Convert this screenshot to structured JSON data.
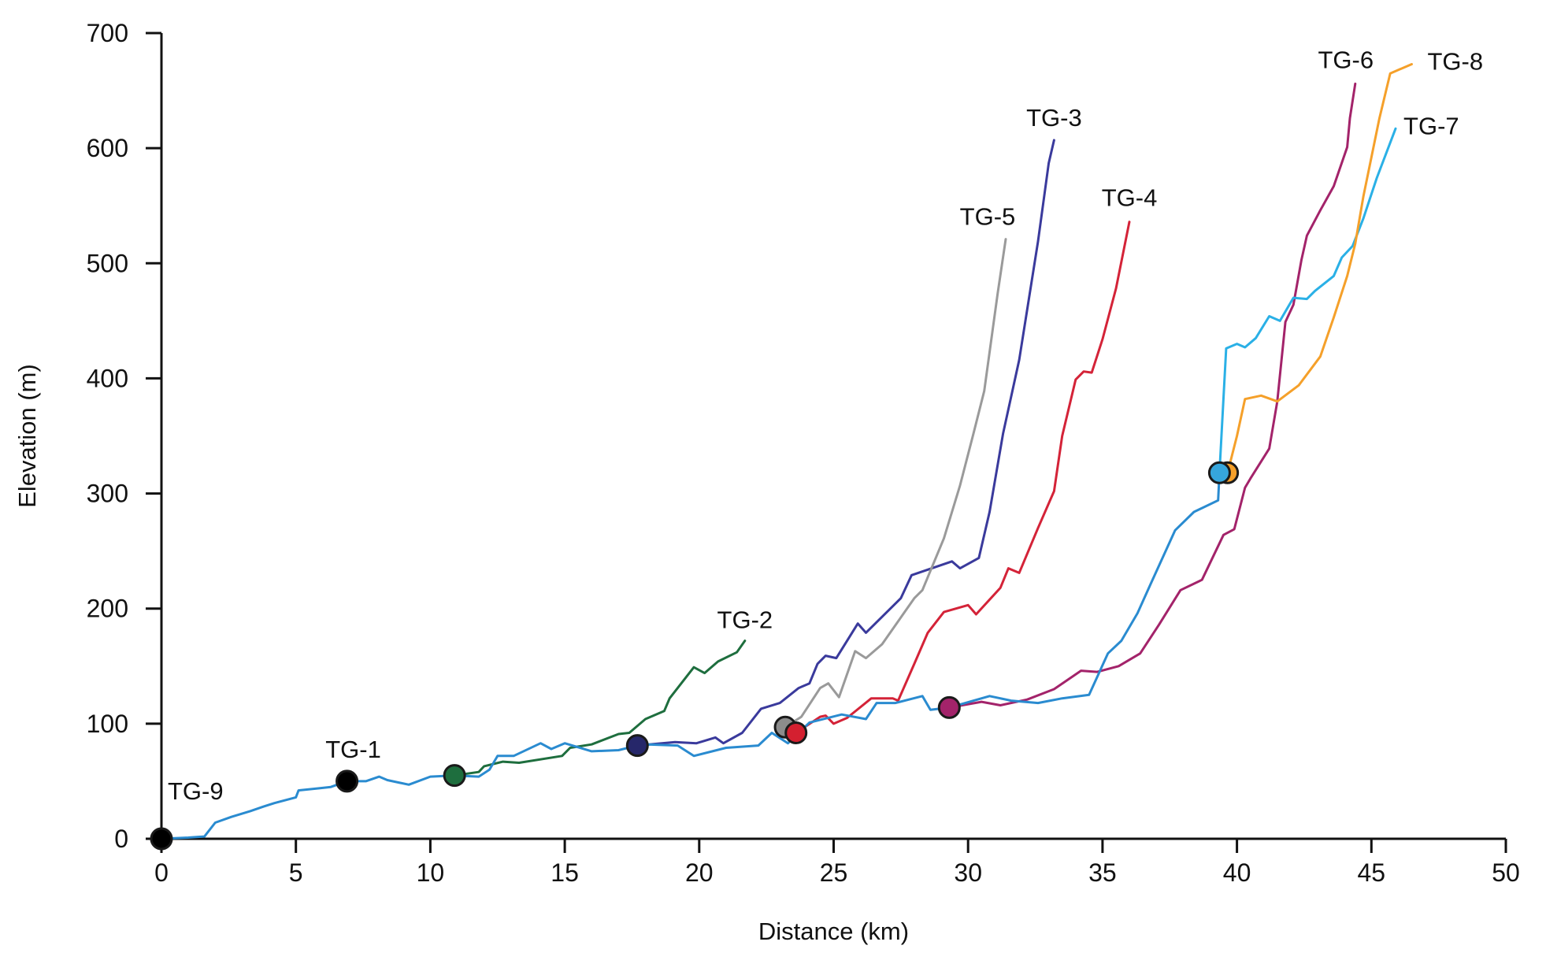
{
  "chart_data": {
    "type": "line",
    "title": "",
    "xlabel": "Distance (km)",
    "ylabel": "Elevation (m)",
    "xlim": [
      0,
      50
    ],
    "ylim": [
      0,
      700
    ],
    "xticks": [
      0,
      5,
      10,
      15,
      20,
      25,
      30,
      35,
      40,
      45,
      50
    ],
    "yticks": [
      0,
      100,
      200,
      300,
      400,
      500,
      600,
      700
    ],
    "grid": false,
    "legend": "none (series labelled at line ends)",
    "series": [
      {
        "name": "TG-9",
        "color": "#2a8bd0",
        "marker": {
          "x": 0,
          "y": 0,
          "color": "#000000"
        },
        "label_at": "start",
        "points": [
          [
            0,
            0
          ],
          [
            1.0,
            1
          ],
          [
            1.6,
            2
          ],
          [
            2.0,
            14
          ],
          [
            2.6,
            19
          ],
          [
            3.3,
            24
          ],
          [
            3.8,
            28
          ],
          [
            4.2,
            31
          ],
          [
            5.0,
            36
          ],
          [
            5.1,
            42
          ],
          [
            5.9,
            44
          ],
          [
            6.3,
            45
          ],
          [
            6.9,
            50
          ],
          [
            7.6,
            50
          ],
          [
            8.1,
            54
          ],
          [
            8.4,
            51
          ],
          [
            9.2,
            47
          ],
          [
            10.0,
            54
          ],
          [
            10.9,
            55
          ],
          [
            11.8,
            54
          ],
          [
            12.2,
            60
          ],
          [
            12.5,
            72
          ],
          [
            13.1,
            72
          ],
          [
            14.1,
            83
          ],
          [
            14.5,
            78
          ],
          [
            15.0,
            83
          ],
          [
            16.0,
            76
          ],
          [
            17.0,
            77
          ],
          [
            17.7,
            81
          ],
          [
            18.1,
            82
          ],
          [
            19.2,
            81
          ],
          [
            19.4,
            78
          ],
          [
            19.8,
            72
          ],
          [
            21.0,
            79
          ],
          [
            22.2,
            81
          ],
          [
            22.7,
            92
          ],
          [
            23.3,
            83
          ],
          [
            24.1,
            101
          ],
          [
            25.3,
            108
          ],
          [
            26.2,
            104
          ],
          [
            26.6,
            118
          ],
          [
            27.3,
            118
          ],
          [
            28.3,
            124
          ],
          [
            28.6,
            112
          ],
          [
            29.3,
            114
          ],
          [
            30.8,
            124
          ],
          [
            31.6,
            120
          ],
          [
            32.6,
            118
          ],
          [
            33.5,
            122
          ],
          [
            34.5,
            125
          ],
          [
            35.2,
            161
          ],
          [
            35.7,
            172
          ],
          [
            36.3,
            196
          ],
          [
            36.8,
            222
          ],
          [
            37.7,
            268
          ],
          [
            38.4,
            284
          ],
          [
            39.3,
            294
          ],
          [
            39.35,
            318
          ]
        ]
      },
      {
        "name": "TG-1",
        "color": "#000000",
        "marker": {
          "x": 6.9,
          "y": 50,
          "color": "#000000"
        },
        "label_at": "marker",
        "points": []
      },
      {
        "name": "TG-2",
        "color": "#1e6e3e",
        "marker": {
          "x": 10.9,
          "y": 55,
          "color": "#1e6e3e"
        },
        "label_at": "end",
        "points": [
          [
            10.9,
            55
          ],
          [
            11.8,
            58
          ],
          [
            12.0,
            63
          ],
          [
            12.7,
            67
          ],
          [
            13.3,
            66
          ],
          [
            14.9,
            72
          ],
          [
            15.2,
            79
          ],
          [
            16.0,
            82
          ],
          [
            17.0,
            91
          ],
          [
            17.4,
            92
          ],
          [
            18.0,
            104
          ],
          [
            18.7,
            111
          ],
          [
            18.9,
            122
          ],
          [
            19.8,
            149
          ],
          [
            20.2,
            144
          ],
          [
            20.7,
            154
          ],
          [
            21.4,
            162
          ],
          [
            21.7,
            172
          ]
        ]
      },
      {
        "name": "TG-3",
        "color": "#3a3a9c",
        "marker": {
          "x": 17.7,
          "y": 81,
          "color": "#26276a"
        },
        "label_at": "end",
        "points": [
          [
            17.7,
            81
          ],
          [
            19.1,
            84
          ],
          [
            19.9,
            83
          ],
          [
            20.6,
            88
          ],
          [
            20.9,
            83
          ],
          [
            21.6,
            92
          ],
          [
            22.3,
            113
          ],
          [
            23.0,
            118
          ],
          [
            23.7,
            131
          ],
          [
            24.1,
            135
          ],
          [
            24.4,
            152
          ],
          [
            24.7,
            159
          ],
          [
            25.1,
            157
          ],
          [
            25.9,
            187
          ],
          [
            26.2,
            179
          ],
          [
            27.5,
            209
          ],
          [
            27.9,
            229
          ],
          [
            29.4,
            241
          ],
          [
            29.7,
            235
          ],
          [
            30.4,
            244
          ],
          [
            30.8,
            284
          ],
          [
            31.3,
            352
          ],
          [
            31.9,
            416
          ],
          [
            32.6,
            519
          ],
          [
            33.0,
            587
          ],
          [
            33.2,
            607
          ]
        ]
      },
      {
        "name": "TG-4",
        "color": "#d42338",
        "marker": {
          "x": 23.6,
          "y": 92,
          "color": "#d42030"
        },
        "label_at": "end",
        "points": [
          [
            23.6,
            92
          ],
          [
            24.5,
            106
          ],
          [
            24.7,
            107
          ],
          [
            25.0,
            100
          ],
          [
            25.5,
            105
          ],
          [
            26.4,
            122
          ],
          [
            27.2,
            122
          ],
          [
            27.4,
            120
          ],
          [
            28.0,
            152
          ],
          [
            28.5,
            179
          ],
          [
            29.1,
            197
          ],
          [
            30.0,
            203
          ],
          [
            30.3,
            195
          ],
          [
            31.2,
            218
          ],
          [
            31.5,
            235
          ],
          [
            31.9,
            231
          ],
          [
            32.6,
            270
          ],
          [
            33.2,
            302
          ],
          [
            33.5,
            350
          ],
          [
            34.0,
            399
          ],
          [
            34.3,
            406
          ],
          [
            34.6,
            405
          ],
          [
            35.0,
            434
          ],
          [
            35.5,
            478
          ],
          [
            36.0,
            536
          ]
        ]
      },
      {
        "name": "TG-5",
        "color": "#9a9a9a",
        "marker": {
          "x": 23.2,
          "y": 97,
          "color": "#8c8c8c"
        },
        "label_at": "end",
        "points": [
          [
            23.2,
            97
          ],
          [
            23.8,
            106
          ],
          [
            24.5,
            131
          ],
          [
            24.8,
            135
          ],
          [
            25.2,
            123
          ],
          [
            25.8,
            163
          ],
          [
            26.2,
            157
          ],
          [
            26.8,
            169
          ],
          [
            28.0,
            209
          ],
          [
            28.3,
            216
          ],
          [
            29.1,
            261
          ],
          [
            29.7,
            307
          ],
          [
            30.2,
            352
          ],
          [
            30.6,
            389
          ],
          [
            31.1,
            474
          ],
          [
            31.4,
            521
          ]
        ]
      },
      {
        "name": "TG-6",
        "color": "#a3236a",
        "marker": {
          "x": 29.3,
          "y": 114,
          "color": "#a3236a"
        },
        "label_at": "end",
        "points": [
          [
            29.3,
            114
          ],
          [
            30.5,
            119
          ],
          [
            31.2,
            116
          ],
          [
            32.2,
            121
          ],
          [
            33.2,
            130
          ],
          [
            34.2,
            146
          ],
          [
            34.8,
            145
          ],
          [
            35.6,
            150
          ],
          [
            36.4,
            161
          ],
          [
            37.1,
            186
          ],
          [
            37.9,
            216
          ],
          [
            38.7,
            225
          ],
          [
            39.5,
            264
          ],
          [
            39.9,
            269
          ],
          [
            40.3,
            305
          ],
          [
            40.5,
            313
          ],
          [
            41.2,
            339
          ],
          [
            41.5,
            380
          ],
          [
            41.8,
            449
          ],
          [
            42.1,
            464
          ],
          [
            42.4,
            503
          ],
          [
            42.6,
            524
          ],
          [
            43.1,
            546
          ],
          [
            43.6,
            567
          ],
          [
            44.1,
            601
          ],
          [
            44.2,
            626
          ],
          [
            44.4,
            656
          ]
        ]
      },
      {
        "name": "TG-7",
        "color": "#2ab0e6",
        "marker": {
          "x": 39.35,
          "y": 318,
          "color": "#36a6dc"
        },
        "label_at": "end",
        "points": [
          [
            39.35,
            318
          ],
          [
            39.6,
            426
          ],
          [
            40.0,
            430
          ],
          [
            40.3,
            427
          ],
          [
            40.7,
            435
          ],
          [
            41.2,
            454
          ],
          [
            41.6,
            450
          ],
          [
            42.1,
            470
          ],
          [
            42.6,
            469
          ],
          [
            42.9,
            476
          ],
          [
            43.6,
            489
          ],
          [
            43.9,
            505
          ],
          [
            44.3,
            515
          ],
          [
            44.7,
            539
          ],
          [
            45.2,
            574
          ],
          [
            45.9,
            617
          ]
        ]
      },
      {
        "name": "TG-8",
        "color": "#f5a02a",
        "marker": {
          "x": 39.65,
          "y": 318,
          "color": "#f5a02a"
        },
        "label_at": "end",
        "points": [
          [
            39.65,
            318
          ],
          [
            40.0,
            350
          ],
          [
            40.3,
            382
          ],
          [
            40.9,
            385
          ],
          [
            41.5,
            380
          ],
          [
            42.3,
            394
          ],
          [
            43.1,
            419
          ],
          [
            43.6,
            453
          ],
          [
            44.1,
            489
          ],
          [
            44.4,
            517
          ],
          [
            44.7,
            558
          ],
          [
            45.0,
            592
          ],
          [
            45.3,
            626
          ],
          [
            45.7,
            665
          ],
          [
            46.5,
            673
          ]
        ]
      }
    ]
  }
}
